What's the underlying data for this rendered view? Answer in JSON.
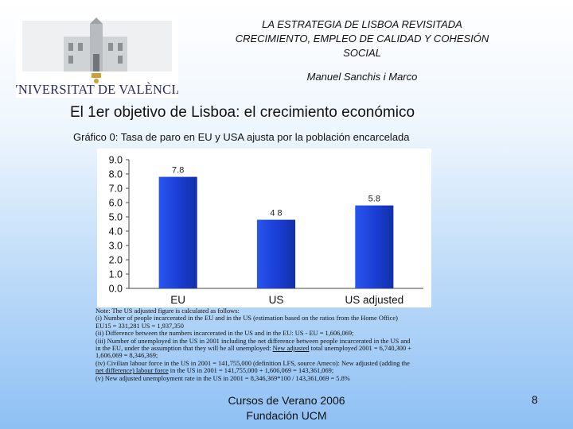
{
  "header": {
    "title_line1": "LA ESTRATEGIA DE LISBOA REVISITADA",
    "title_line2": "CRECIMIENTO, EMPLEO DE CALIDAD Y COHESIÓN",
    "title_line3": "SOCIAL",
    "author": "Manuel Sanchis i Marco"
  },
  "logo": {
    "text": "VNIVERSITAT DE VALÈNCIA",
    "icon": "university-building-logo"
  },
  "section_title": "El 1er objetivo de Lisboa: el crecimiento económico",
  "chart_caption": "Gráfico 0:  Tasa de paro en EU y USA ajusta por la población encarcelada",
  "chart_data": {
    "type": "bar",
    "categories": [
      "EU",
      "US",
      "US adjusted"
    ],
    "values": [
      7.8,
      4.8,
      5.8
    ],
    "data_labels": [
      "7.8",
      "4 8",
      "5.8"
    ],
    "yticks": [
      "0.0",
      "1.0",
      "2.0",
      "3.0",
      "4.0",
      "5.0",
      "6.0",
      "7.0",
      "8.0",
      "9.0"
    ],
    "ylim": [
      0,
      9
    ],
    "bar_color": "#1a3fd6",
    "grid": false,
    "legend": "none"
  },
  "notes": {
    "line1": "Note: The US adjusted figure is calculated as follows:",
    "line2": "(i) Number of people incarcerated in the EU and in the US (estimation based on the ratios from the Home Office)",
    "line3": "EU15 = 331,281        US = 1,937,350",
    "line4": "(ii) Difference between the numbers incarcerated in the US and in the EU: US - EU = 1,606,069;",
    "line5": "(iii) Number of unemployed in the US in 2001 including the net difference between people incarcerated in the US and",
    "line6": "in the EU, under the assumption that they will be all unemployed:",
    "line6_u": "New adjusted",
    "line6_end": " total unemployed 2001 = 6,740,300 +",
    "line7": "1,606,069 = 8,346,369;",
    "line8": "(iv) Civilian labour force in the US in 2001 = 141,755,000 (definition LFS, source Ameco): New adjusted (adding the",
    "line9_u": "net difference) labour force",
    "line9_end": " in the US in 2001 = 141,755,000 + 1,606,069 = 143,361,069;",
    "line10": "(v) New adjusted unemployment rate in the US in 2001 = 8,346,369*100 / 143,361,069 = 5.8%"
  },
  "footer": {
    "line1": "Cursos de Verano 2006",
    "line2": "Fundación UCM",
    "page": "8"
  }
}
